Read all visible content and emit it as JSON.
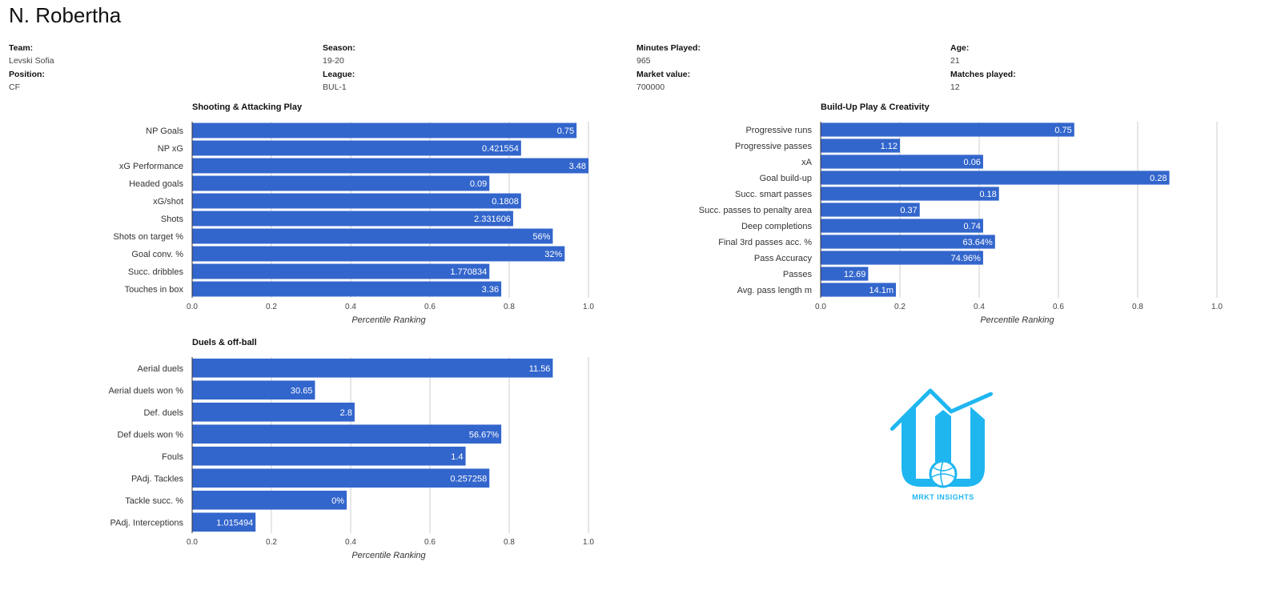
{
  "player": {
    "name": "N. Robertha"
  },
  "info": {
    "col1": [
      {
        "label": "Team:",
        "value": "Levski Sofia"
      },
      {
        "label": "Position:",
        "value": "CF"
      }
    ],
    "col2": [
      {
        "label": "Season:",
        "value": "19-20"
      },
      {
        "label": "League:",
        "value": "BUL-1"
      }
    ],
    "col3": [
      {
        "label": "Minutes Played:",
        "value": "965"
      },
      {
        "label": "Market value:",
        "value": "700000"
      }
    ],
    "col4": [
      {
        "label": "Age:",
        "value": "21"
      },
      {
        "label": "Matches played:",
        "value": "12"
      }
    ]
  },
  "colors": {
    "bar": "#3366cc",
    "grid": "#cccccc",
    "axis": "#333333"
  },
  "logo": {
    "text": "MRKT INSIGHTS",
    "icon": "football-building-logo-icon"
  },
  "chart_data": [
    {
      "type": "bar",
      "orientation": "horizontal",
      "title": "Shooting & Attacking Play",
      "xlabel": "Percentile Ranking",
      "xlim": [
        0,
        1
      ],
      "ticks": [
        "0.0",
        "0.2",
        "0.4",
        "0.6",
        "0.8",
        "1.0"
      ],
      "categories": [
        "NP Goals",
        "NP xG",
        "xG Performance",
        "Headed goals",
        "xG/shot",
        "Shots",
        "Shots on target %",
        "Goal conv. %",
        "Succ. dribbles",
        "Touches in box"
      ],
      "values": [
        0.97,
        0.83,
        1.0,
        0.75,
        0.83,
        0.81,
        0.91,
        0.94,
        0.75,
        0.78
      ],
      "data_labels": [
        "0.75",
        "0.421554",
        "3.48",
        "0.09",
        "0.1808",
        "2.331606",
        "56%",
        "32%",
        "1.770834",
        "3.36"
      ]
    },
    {
      "type": "bar",
      "orientation": "horizontal",
      "title": "Build-Up Play & Creativity",
      "xlabel": "Percentile Ranking",
      "xlim": [
        0,
        1
      ],
      "ticks": [
        "0.0",
        "0.2",
        "0.4",
        "0.6",
        "0.8",
        "1.0"
      ],
      "categories": [
        "Progressive runs",
        "Progressive passes",
        "xA",
        "Goal build-up",
        "Succ. smart passes",
        "Succ. passes to penalty area",
        "Deep completions",
        "Final 3rd passes acc. %",
        "Pass Accuracy",
        "Passes",
        "Avg. pass length m"
      ],
      "values": [
        0.64,
        0.2,
        0.41,
        0.88,
        0.45,
        0.25,
        0.41,
        0.44,
        0.41,
        0.12,
        0.19
      ],
      "data_labels": [
        "0.75",
        "1.12",
        "0.06",
        "0.28",
        "0.18",
        "0.37",
        "0.74",
        "63.64%",
        "74.96%",
        "12.69",
        "14.1m"
      ]
    },
    {
      "type": "bar",
      "orientation": "horizontal",
      "title": "Duels & off-ball",
      "xlabel": "Percentile Ranking",
      "xlim": [
        0,
        1
      ],
      "ticks": [
        "0.0",
        "0.2",
        "0.4",
        "0.6",
        "0.8",
        "1.0"
      ],
      "categories": [
        "Aerial duels",
        "Aerial duels won %",
        "Def. duels",
        "Def duels won %",
        "Fouls",
        "PAdj. Tackles",
        "Tackle succ. %",
        "PAdj. Interceptions"
      ],
      "values": [
        0.91,
        0.31,
        0.41,
        0.78,
        0.69,
        0.75,
        0.39,
        0.16
      ],
      "data_labels": [
        "11.56",
        "30.65",
        "2.8",
        "56.67%",
        "1.4",
        "0.257258",
        "0%",
        "1.015494"
      ]
    }
  ]
}
